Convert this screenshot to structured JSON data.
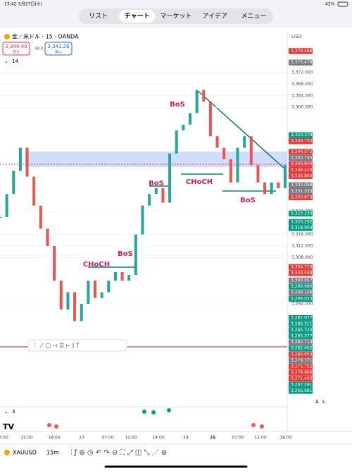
{
  "status_bar": {
    "time": "13:42",
    "date": "5月27日(火)",
    "battery": "42%"
  },
  "tabs": [
    "リスト",
    "チャート",
    "マーケット",
    "アイデア",
    "メニュー"
  ],
  "selected_tab": 1,
  "symbol_header": {
    "title": "金／米ドル · 15 · OANDA",
    "currency": "USD",
    "sell_price": "3,340.40",
    "sell_label": "売り",
    "spread": "88.0",
    "buy_price": "3,341.28",
    "buy_label": "買い",
    "indicator_count": "14"
  },
  "chart_data": {
    "type": "candlestick-line",
    "closes": [
      3322,
      3330,
      3338,
      3346,
      3336,
      3326,
      3318,
      3312,
      3300,
      3290,
      3296,
      3286,
      3292,
      3300,
      3294,
      3296,
      3300,
      3303,
      3300,
      3302,
      3316,
      3326,
      3330,
      3332,
      3327,
      3344,
      3352,
      3354,
      3358,
      3366,
      3362,
      3350,
      3346,
      3342,
      3334,
      3346,
      3350,
      3340,
      3334,
      3330,
      3334,
      3332,
      3340
    ],
    "color": "#26a69a",
    "ylim": [
      3263,
      3379
    ],
    "yticks": [
      {
        "value": 3372,
        "label": "3,372.000"
      },
      {
        "value": 3368,
        "label": "3,368.000"
      },
      {
        "value": 3364,
        "label": "3,364.000"
      },
      {
        "value": 3360,
        "label": "3,360.000"
      },
      {
        "value": 3324,
        "label": "3,324.000"
      },
      {
        "value": 3316,
        "label": "3,316.000"
      },
      {
        "value": 3312,
        "label": "3,312.000"
      },
      {
        "value": 3308,
        "label": "3,308.000"
      },
      {
        "value": 3292,
        "label": "3,292.000"
      }
    ],
    "price_tags": [
      {
        "value": 3379.466,
        "label": "3,379.466",
        "color": "#e53935"
      },
      {
        "value": 3375.479,
        "label": "3,375.479",
        "color": "#787b86"
      },
      {
        "value": 3350.379,
        "label": "3,350.379",
        "color": "#089981"
      },
      {
        "value": 3349.703,
        "label": "3,349.703",
        "color": "#e53935"
      },
      {
        "value": 3344.572,
        "label": "3,344.572",
        "color": "#e53935"
      },
      {
        "value": 3343.745,
        "label": "3,343.745",
        "color": "#787b86"
      },
      {
        "value": 3340.84,
        "label": "3,340.840",
        "color": "#f23645"
      },
      {
        "value": 3338.41,
        "label": "3,338.410",
        "color": "#e53935"
      },
      {
        "value": 3336.8,
        "label": "3,336.800",
        "color": "#e53935"
      },
      {
        "value": 3333.058,
        "label": "3,333.058",
        "color": "#787b86"
      },
      {
        "value": 3331.533,
        "label": "3,331.533",
        "color": "#787b86"
      },
      {
        "value": 3330.673,
        "label": "3,330.673",
        "color": "#e53935"
      },
      {
        "value": 3323.23,
        "label": "3,323.230",
        "color": "#089981"
      },
      {
        "value": 3320.292,
        "label": "3,320.292",
        "color": "#089981"
      },
      {
        "value": 3318.904,
        "label": "3,318.904",
        "color": "#089981"
      },
      {
        "value": 3304.718,
        "label": "3,304.718",
        "color": "#e53935"
      },
      {
        "value": 3304.548,
        "label": "3,304.548",
        "color": "#e53935"
      },
      {
        "value": 3300.057,
        "label": "3,300.057",
        "color": "#787b86"
      },
      {
        "value": 3299.986,
        "label": "3,299.986",
        "color": "#089981"
      },
      {
        "value": 3299.106,
        "label": "3,299.106",
        "color": "#787b86"
      },
      {
        "value": 3299.023,
        "label": "3,299.023",
        "color": "#089981"
      },
      {
        "value": 3287.077,
        "label": "3,287.077",
        "color": "#089981"
      },
      {
        "value": 3286.311,
        "label": "3,286.311",
        "color": "#089981"
      },
      {
        "value": 3285.72,
        "label": "3,285.720",
        "color": "#089981"
      },
      {
        "value": 3285.377,
        "label": "3,285.377",
        "color": "#089981"
      },
      {
        "value": 3284.714,
        "label": "3,284.714",
        "color": "#787b86"
      },
      {
        "value": 3282.002,
        "label": "3,282.002",
        "color": "#089981"
      },
      {
        "value": 3280.053,
        "label": "3,280.053",
        "color": "#e53935"
      },
      {
        "value": 3279.371,
        "label": "3,279.371",
        "color": "#787b86"
      },
      {
        "value": 3275.752,
        "label": "3,275.752",
        "color": "#e53935"
      },
      {
        "value": 3274.8,
        "label": "3,274.800",
        "color": "#e53935"
      },
      {
        "value": 3271.402,
        "label": "3,271.402",
        "color": "#e53935"
      },
      {
        "value": 3267.291,
        "label": "3,267.291",
        "color": "#089981"
      },
      {
        "value": 3266.681,
        "label": "3,266.681",
        "color": "#089981"
      }
    ],
    "x_labels": [
      "7:00",
      "12:00",
      "18:00",
      "23",
      "07:00",
      "12:00",
      "18:00",
      "24",
      "26",
      "07:00",
      "12:00",
      "18:00"
    ],
    "annotations": [
      "BoS",
      "BoS",
      "CHoCH",
      "BoS",
      "BoS",
      "CHoCH"
    ]
  },
  "indicator_pane": {
    "count": "3"
  },
  "bottom_toolbar": {
    "symbol": "XAUUSD",
    "interval": "15m"
  }
}
